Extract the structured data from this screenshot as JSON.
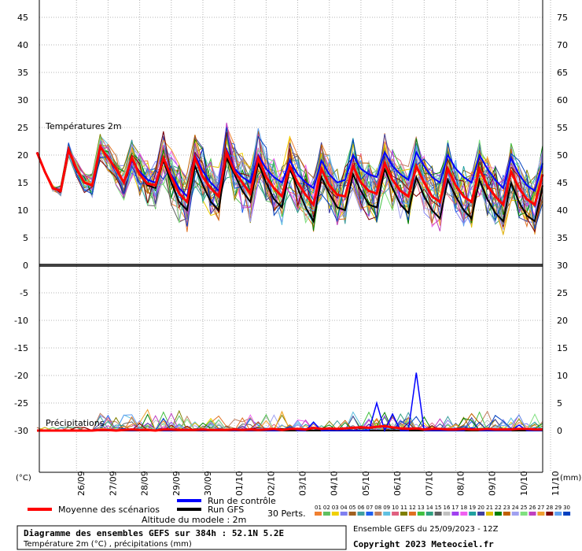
{
  "chart_data": {
    "type": "line",
    "title": "Diagramme des ensembles GEFS sur 384h : 52.1N 5.2E",
    "subtitle": "Température 2m (°C) , précipitations (mm)",
    "left_unit": "(°C)",
    "right_unit": "(mm)",
    "left_axis_ticks": [
      "45",
      "40",
      "35",
      "30",
      "25",
      "20",
      "15",
      "10",
      "5",
      "0",
      "-5",
      "-10",
      "-15",
      "-20",
      "-25",
      "-30"
    ],
    "right_axis_ticks": [
      "75",
      "70",
      "65",
      "60",
      "55",
      "50",
      "45",
      "40",
      "35",
      "30",
      "25",
      "20",
      "15",
      "10",
      "5",
      "0"
    ],
    "date_labels": [
      "26/09",
      "27/09",
      "28/09",
      "29/09",
      "30/09",
      "01/10",
      "02/10",
      "03/10",
      "04/10",
      "05/10",
      "06/10",
      "07/10",
      "08/10",
      "09/10",
      "10/10",
      "11/10"
    ],
    "panel_labels": {
      "temperature": "Températures 2m",
      "precip": "Précipitations"
    },
    "x_hours": [
      0,
      6,
      12,
      18,
      24,
      30,
      36,
      42,
      48,
      54,
      60,
      66,
      72,
      78,
      84,
      90,
      96,
      102,
      108,
      114,
      120,
      126,
      132,
      138,
      144,
      150,
      156,
      162,
      168,
      174,
      180,
      186,
      192,
      198,
      204,
      210,
      216,
      222,
      228,
      234,
      240,
      246,
      252,
      258,
      264,
      270,
      276,
      282,
      288,
      294,
      300,
      306,
      312,
      318,
      324,
      330,
      336,
      342,
      348,
      354,
      360,
      366,
      372,
      378,
      384
    ],
    "temperature_mean": [
      20.5,
      17,
      14,
      13.5,
      21,
      17.5,
      15,
      14.5,
      21.5,
      19.5,
      17.5,
      15,
      19.5,
      16.5,
      14.8,
      14.5,
      19.5,
      16,
      13,
      11.5,
      19.5,
      16,
      14,
      12.5,
      20.5,
      17,
      15,
      13,
      19.5,
      16,
      14,
      12.5,
      18,
      15,
      12.8,
      11,
      17.5,
      14.5,
      12.8,
      12.5,
      18,
      15,
      13.5,
      13,
      18.5,
      15.5,
      13.5,
      12.5,
      18,
      15,
      12.5,
      11.5,
      17.5,
      14.5,
      12.5,
      11.5,
      17.5,
      14.5,
      12.5,
      11,
      17,
      14,
      12,
      11,
      16.5
    ],
    "temperature_control": [
      20.5,
      17,
      14,
      13.5,
      21,
      17.5,
      15,
      14.5,
      21.5,
      19.5,
      17.5,
      15,
      19,
      17,
      15.5,
      15,
      19.5,
      16.5,
      14,
      12.5,
      20,
      17,
      15,
      13.5,
      21,
      17.5,
      16,
      15,
      20,
      17.5,
      16,
      15,
      19,
      16.5,
      15,
      14,
      19,
      16.5,
      15,
      15.5,
      20,
      17.5,
      16.5,
      16,
      20.5,
      18,
      16.5,
      15.5,
      20.5,
      18,
      16,
      15,
      20,
      17.5,
      16,
      15,
      20,
      17.5,
      15.5,
      14,
      19.5,
      16.5,
      14.5,
      13.5,
      18.5
    ],
    "temperature_gfs": [
      20.5,
      17,
      14,
      13.5,
      21,
      17.5,
      15,
      14.5,
      21.5,
      19.5,
      17.5,
      15,
      19.5,
      16.5,
      14.5,
      14,
      19,
      15,
      11.5,
      10,
      18,
      14.5,
      11.5,
      10,
      19.5,
      16.5,
      13.5,
      11.5,
      18.5,
      15,
      12,
      10.5,
      17.5,
      14,
      10.5,
      8,
      16,
      13,
      10.5,
      10,
      16.5,
      13.5,
      11,
      10.5,
      17.5,
      14,
      11,
      9.5,
      16,
      12.5,
      10,
      8.5,
      15.5,
      12.5,
      10,
      8.5,
      15.5,
      12,
      9.5,
      8,
      15,
      11.5,
      9,
      8,
      14.5
    ],
    "precip_mean": [
      0,
      0,
      0,
      0,
      0,
      0,
      0,
      0,
      0.1,
      0.1,
      0,
      0.1,
      0.2,
      0.1,
      0.1,
      0,
      0.2,
      0.2,
      0.1,
      0.1,
      0.1,
      0.2,
      0.1,
      0.1,
      0.1,
      0.2,
      0.1,
      0.2,
      0.1,
      0.2,
      0.3,
      0.1,
      0.3,
      0.3,
      0.2,
      0.5,
      0.3,
      0.4,
      0.3,
      0.4,
      0.5,
      0.6,
      0.5,
      0.7,
      0.8,
      0.6,
      0.4,
      0.3,
      0.4,
      0.2,
      0.3,
      0.3,
      0.2,
      0.2,
      0.3,
      0.2,
      0.2,
      0.3,
      0.2,
      0.2,
      0.2,
      0.3,
      0.3,
      0.2,
      0.2
    ],
    "precip_control": [
      0,
      0,
      0,
      0,
      0,
      0,
      0,
      0,
      0,
      0,
      0,
      0,
      0,
      0,
      0,
      0,
      0,
      0,
      0,
      0,
      0,
      0,
      0,
      0,
      0,
      0,
      0,
      0,
      0,
      0,
      0,
      0,
      0.5,
      0,
      0,
      1.5,
      0,
      0,
      0,
      0,
      0,
      0,
      0,
      5,
      0,
      3,
      0,
      0,
      10.5,
      0,
      0,
      0,
      0,
      0,
      0,
      0.5,
      0,
      0,
      0,
      0,
      0,
      1,
      0,
      0,
      0
    ],
    "precip_gfs": [
      0,
      0,
      0,
      0,
      0,
      0,
      0,
      0,
      0,
      0,
      0,
      0,
      0,
      0,
      0,
      0,
      0,
      0,
      0,
      0,
      0,
      0,
      0,
      0,
      0,
      0,
      0,
      0,
      0,
      0,
      0,
      0,
      0,
      0,
      0,
      0,
      0,
      0,
      0,
      0,
      0,
      0,
      0,
      0,
      0,
      0,
      0,
      0,
      0,
      0,
      0,
      0,
      0,
      0,
      0,
      0,
      0,
      0,
      0,
      0,
      0,
      0,
      0,
      0,
      0
    ],
    "legend": {
      "mean": "Moyenne des scénarios",
      "control": "Run de contrôle",
      "gfs": "Run GFS",
      "perts": "30 Perts.",
      "altitude": "Altitude du modele : 2m",
      "pert_ids": [
        "01",
        "02",
        "03",
        "04",
        "05",
        "06",
        "07",
        "08",
        "09",
        "10",
        "11",
        "12",
        "13",
        "14",
        "15",
        "16",
        "17",
        "18",
        "19",
        "20",
        "21",
        "22",
        "23",
        "24",
        "25",
        "26",
        "27",
        "28",
        "29",
        "30"
      ]
    },
    "colors": {
      "mean": "#ff0000",
      "control": "#0000ff",
      "gfs": "#000000",
      "perts": [
        "#f08030",
        "#60c060",
        "#f0d000",
        "#8080f0",
        "#a06020",
        "#40a0a0",
        "#2060f0",
        "#c08060",
        "#60c0e0",
        "#e06080",
        "#808000",
        "#e07020",
        "#40c040",
        "#30a080",
        "#606060",
        "#c0c0c0",
        "#a040f0",
        "#f060f0",
        "#20a0a0",
        "#4040a0",
        "#e0c000",
        "#008000",
        "#c06000",
        "#a0a0f0",
        "#80e080",
        "#c040c0",
        "#f0a030",
        "#800000",
        "#60a0f0",
        "#0040c0"
      ]
    },
    "x_range_hours": [
      0,
      384
    ],
    "temp_range_c": [
      -30,
      45
    ],
    "precip_range_mm": [
      0,
      30
    ],
    "grid": true,
    "legend_position": "bottom"
  },
  "footer": {
    "ensemble_run": "Ensemble GEFS du 25/09/2023 - 12Z",
    "copyright": "Copyright 2023 Meteociel.fr"
  }
}
